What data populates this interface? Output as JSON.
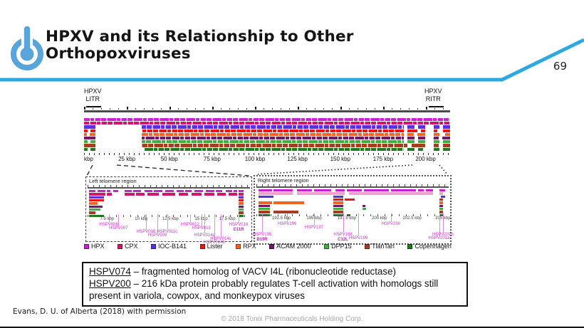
{
  "slide": {
    "title_lines": [
      "HPXV and its Relationship to Other",
      "Orthopoxviruses"
    ],
    "page_number": "69",
    "accent_color": "#2BA9E0",
    "logo_color": "#57A5DB"
  },
  "figure": {
    "left_itr": {
      "line1": "HPXV",
      "line2": "LITR"
    },
    "right_itr": {
      "line1": "HPXV",
      "line2": "RITR"
    },
    "main_axis_ticks": [
      {
        "label": "kbp",
        "x": 0
      },
      {
        "label": "25 kbp",
        "x": 11.7
      },
      {
        "label": "50 kbp",
        "x": 23.3
      },
      {
        "label": "75 kbp",
        "x": 35.0
      },
      {
        "label": "100 kbp",
        "x": 46.7
      },
      {
        "label": "125 kbp",
        "x": 58.3
      },
      {
        "label": "150 kbp",
        "x": 70.0
      },
      {
        "label": "175 kbp",
        "x": 81.7
      },
      {
        "label": "200 kbp",
        "x": 93.3
      }
    ],
    "legend": [
      {
        "label": "HPX",
        "color": "#cb1fd6"
      },
      {
        "label": "CPX",
        "color": "#d41570"
      },
      {
        "label": "IOC-B141",
        "color": "#5a2fe0"
      },
      {
        "label": "Lister",
        "color": "#ee1212"
      },
      {
        "label": "RPX",
        "color": "#f2641f"
      },
      {
        "label": "ACAM 2000",
        "color": "#6d1a6d"
      },
      {
        "label": "DPP15",
        "color": "#3cb03c"
      },
      {
        "label": "TianTan",
        "color": "#a63d21"
      },
      {
        "label": "Copenhagen",
        "color": "#1d7a1d"
      }
    ],
    "left_region": {
      "title": "Left telomere region",
      "axis_ticks": [
        {
          "label": "7.5 kbp",
          "x": 12
        },
        {
          "label": "10 kbp",
          "x": 33
        },
        {
          "label": "12.5 kbp",
          "x": 51
        },
        {
          "label": "15 kbp",
          "x": 70
        },
        {
          "label": "17.5 kbp",
          "x": 86
        }
      ],
      "genes": [
        {
          "name": "HSPV006",
          "x": 13,
          "row": 0
        },
        {
          "name": "HSPV007",
          "x": 19,
          "row": 1
        },
        {
          "name": "HSPV008",
          "x": 36,
          "row": 2
        },
        {
          "name": "HSPV009",
          "x": 43,
          "row": 3
        },
        {
          "name": "HSPV011c",
          "x": 49,
          "row": 2
        },
        {
          "name": "HSPV012",
          "x": 63,
          "row": 0
        },
        {
          "name": "HSPV013",
          "x": 70,
          "row": 1
        },
        {
          "name": "HSPV014a",
          "x": 72,
          "row": 3
        },
        {
          "name": "HSPV014b",
          "x": 78,
          "row": 5
        },
        {
          "name": "HSPV014c",
          "x": 82,
          "row": 4
        },
        {
          "name": "HSPV016",
          "sub": "C11R",
          "x": 93,
          "row": 0
        }
      ]
    },
    "right_region": {
      "title": "Right telomere region",
      "axis_ticks": [
        {
          "label": "192.5 kbp",
          "x": 13
        },
        {
          "label": "195 kbp",
          "x": 30
        },
        {
          "label": "197.5 kbp",
          "x": 47
        },
        {
          "label": "200 kbp",
          "x": 64
        },
        {
          "label": "202.5 kbp",
          "x": 81
        },
        {
          "label": "205 kbp",
          "x": 97
        }
      ],
      "genes": [
        {
          "name": "HSPV195",
          "sub": "B19R",
          "x": 3,
          "row": 3
        },
        {
          "name": "HSPV196",
          "x": 16,
          "row": 0
        },
        {
          "name": "HSPV197",
          "x": 30,
          "row": 1
        },
        {
          "name": "HSPV198",
          "sub": "C12L",
          "x": 45,
          "row": 3
        },
        {
          "name": "HSPV199",
          "x": 53,
          "row": 4
        },
        {
          "name": "HSPV200",
          "x": 70,
          "row": 0
        },
        {
          "name": "HSPV201b",
          "x": 97,
          "row": 3
        },
        {
          "name": "HSPV201a",
          "x": 95,
          "row": 4
        }
      ]
    }
  },
  "callout": {
    "entries": [
      {
        "term": "HSPV074",
        "text": " – fragmented homolog of VACV I4L (ribonucleotide reductase)"
      },
      {
        "term": "HSPV200",
        "text": " – 216 kDa protein probably regulates T-cell activation with homologs still present in variola, cowpox, and monkeypox viruses"
      }
    ]
  },
  "footer": {
    "attribution": "Evans, D. U. of Alberta (2018) with permission",
    "copyright": "© 2018 Tonix Pharmaceuticals Holding Corp."
  }
}
